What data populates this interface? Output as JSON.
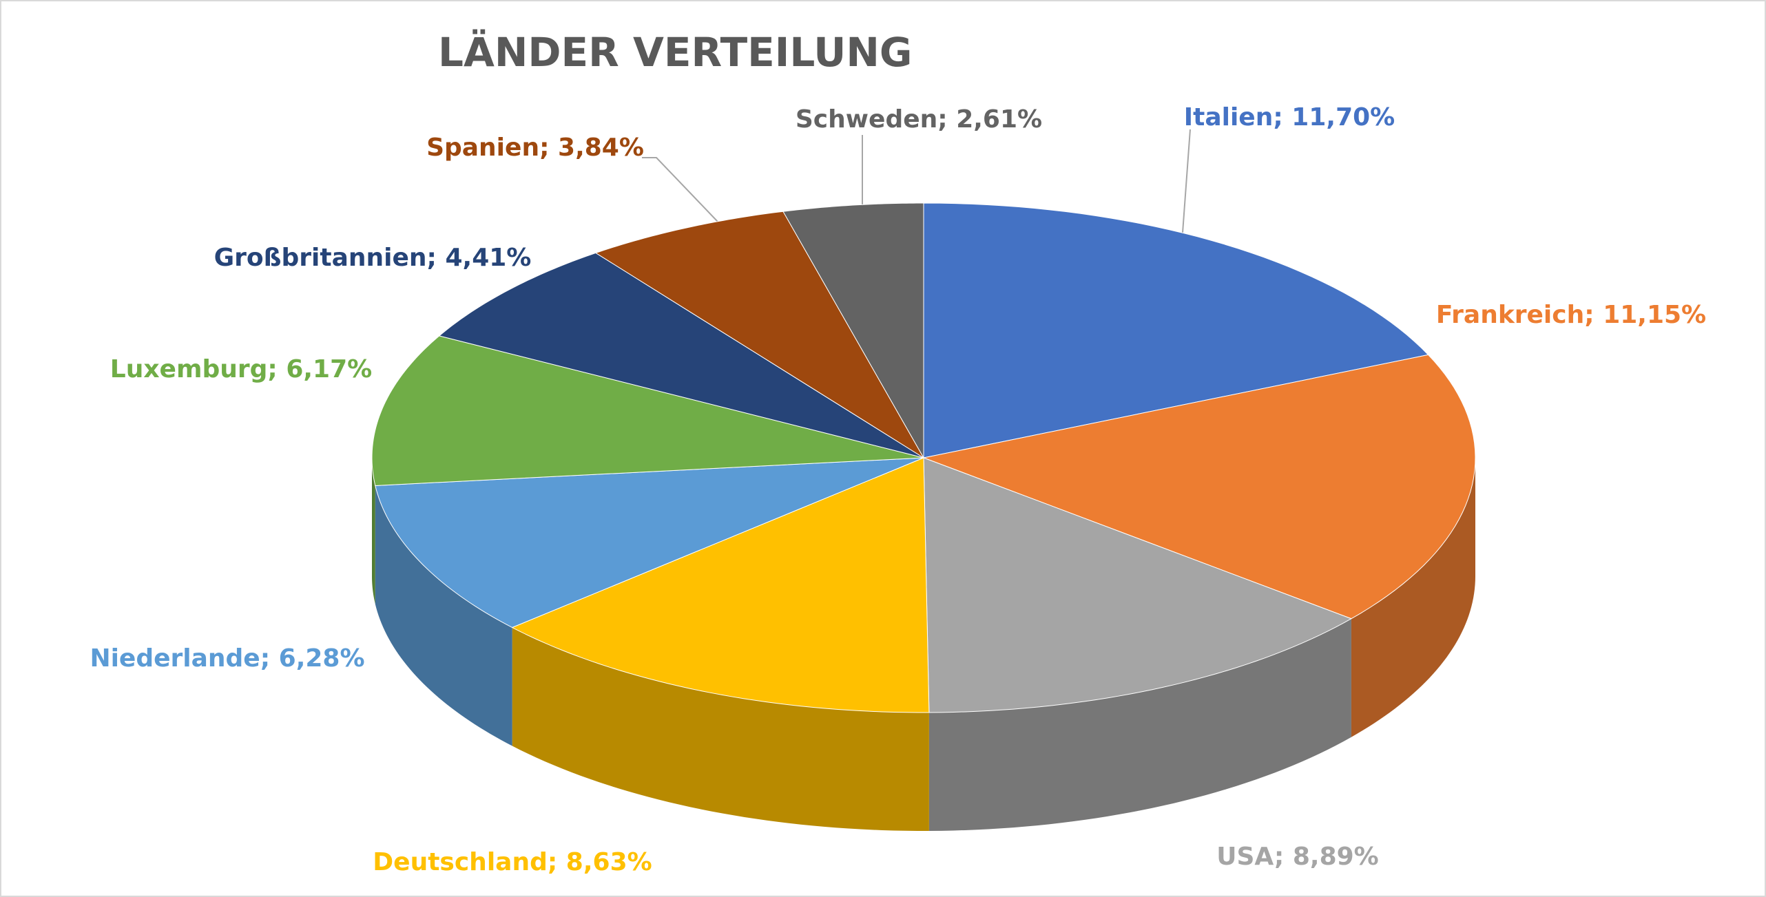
{
  "chart_data": {
    "type": "pie",
    "title": "LÄNDER VERTEILUNG",
    "categories": [
      "Italien",
      "Frankreich",
      "USA",
      "Deutschland",
      "Niederlande",
      "Luxemburg",
      "Großbritannien",
      "Spanien",
      "Schweden"
    ],
    "values": [
      11.7,
      11.15,
      8.89,
      8.63,
      6.28,
      6.17,
      4.41,
      3.84,
      2.61
    ],
    "value_labels": [
      "11,70%",
      "11,15%",
      "8,89%",
      "8,63%",
      "6,28%",
      "6,17%",
      "4,41%",
      "3,84%",
      "2,61%"
    ],
    "label_separator": "; ",
    "colors": [
      "#4472c4",
      "#ed7d31",
      "#a5a5a5",
      "#ffc000",
      "#5b9bd5",
      "#70ad47",
      "#264478",
      "#9e480e",
      "#636363"
    ]
  }
}
